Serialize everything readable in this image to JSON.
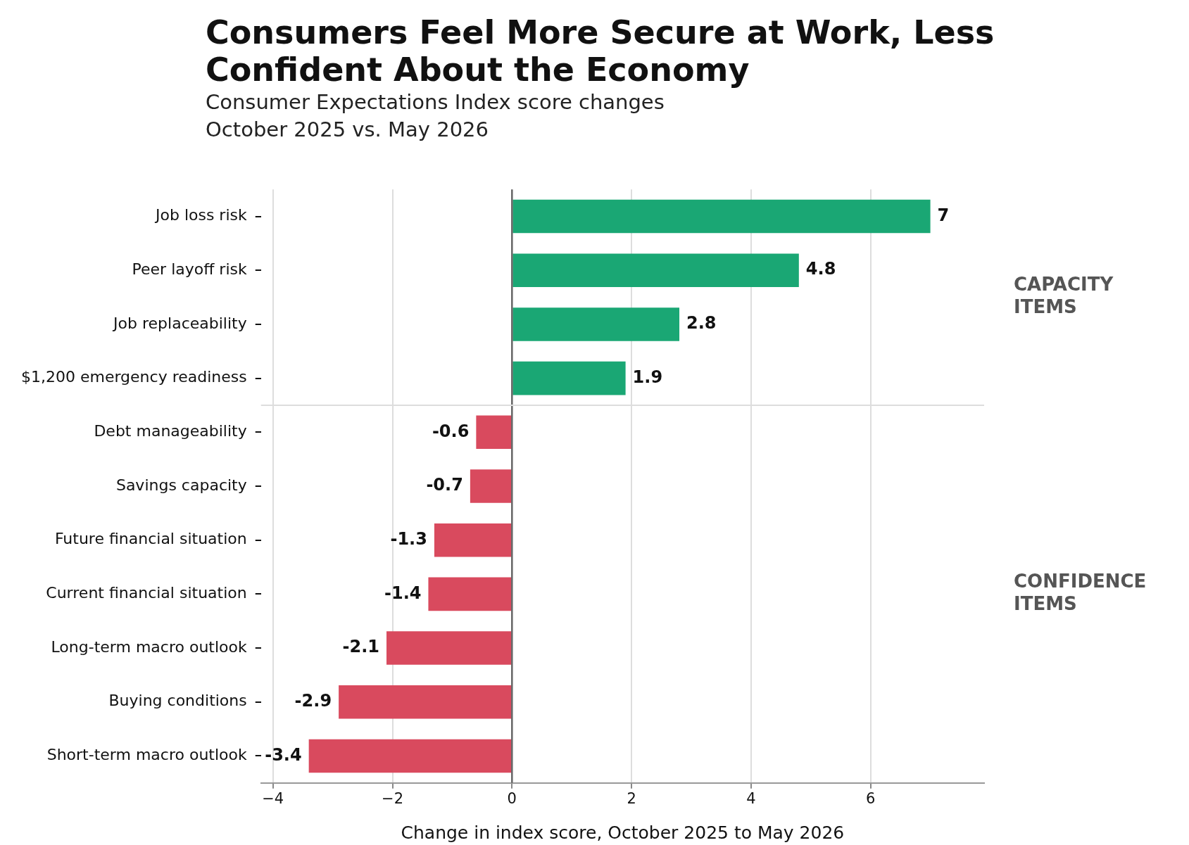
{
  "chart_data": {
    "type": "bar",
    "orientation": "horizontal",
    "title": "Consumers Feel More Secure at Work, Less Confident About the Economy",
    "subtitle": "Consumer Expectations Index score changes\nOctober 2025 vs. May 2026",
    "xlabel": "Change in index score, October 2025 to May 2026",
    "categories": [
      "Job loss risk",
      "Peer layoff risk",
      "Job replaceability",
      "$1,200 emergency readiness",
      "Debt manageability",
      "Savings capacity",
      "Future financial situation",
      "Current financial situation",
      "Long-term macro outlook",
      "Buying conditions",
      "Short-term macro outlook"
    ],
    "values": [
      7,
      4.8,
      2.8,
      1.9,
      -0.6,
      -0.7,
      -1.3,
      -1.4,
      -2.1,
      -2.9,
      -3.4
    ],
    "colors": [
      "#1aa774",
      "#1aa774",
      "#1aa774",
      "#1aa774",
      "#d94a5e",
      "#d94a5e",
      "#d94a5e",
      "#d94a5e",
      "#d94a5e",
      "#d94a5e",
      "#d94a5e"
    ],
    "data_labels": true,
    "xlim": [
      -4.2,
      7.9
    ],
    "xticks": [
      {
        "value": -4,
        "label": "−4"
      },
      {
        "value": -2,
        "label": "−2"
      },
      0,
      2,
      4,
      6
    ],
    "grid": "x",
    "legend": false,
    "ref_lines": [
      {
        "axis": "x",
        "value": 0,
        "color": "#666666"
      }
    ],
    "annotations": [
      "CAPACITY ITEMS",
      "CONFIDENCE ITEMS"
    ]
  }
}
